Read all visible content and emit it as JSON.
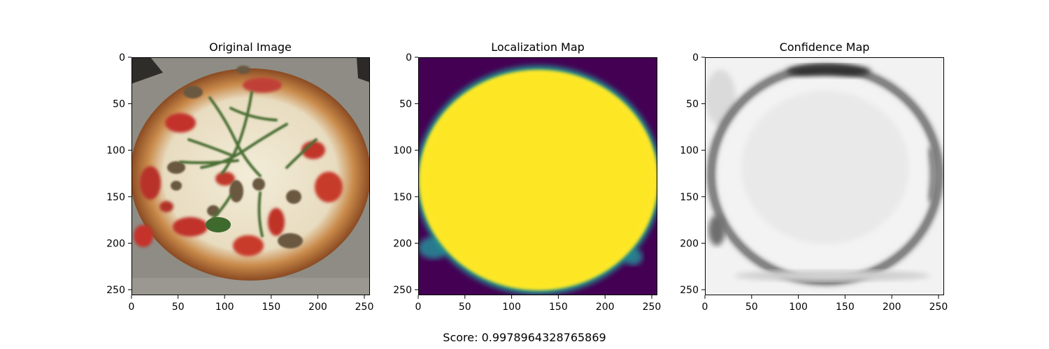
{
  "chart_data": [
    {
      "type": "heatmap",
      "title": "Original Image",
      "content": "photo",
      "xlim": [
        0,
        256
      ],
      "ylim": [
        256,
        0
      ],
      "xticks": [
        0,
        50,
        100,
        150,
        200,
        250
      ],
      "yticks": [
        0,
        50,
        100,
        150,
        200,
        250
      ]
    },
    {
      "type": "heatmap",
      "title": "Localization Map",
      "colormap": "viridis",
      "background_color": "#440154",
      "foreground_color": "#fde725",
      "xlim": [
        0,
        256
      ],
      "ylim": [
        256,
        0
      ],
      "xticks": [
        0,
        50,
        100,
        150,
        200,
        250
      ],
      "yticks": [
        0,
        50,
        100,
        150,
        200,
        250
      ]
    },
    {
      "type": "heatmap",
      "title": "Confidence Map",
      "colormap": "gray",
      "xlim": [
        0,
        256
      ],
      "ylim": [
        256,
        0
      ],
      "xticks": [
        0,
        50,
        100,
        150,
        200,
        250
      ],
      "yticks": [
        0,
        50,
        100,
        150,
        200,
        250
      ]
    }
  ],
  "score_text": "Score: 0.9978964328765869"
}
